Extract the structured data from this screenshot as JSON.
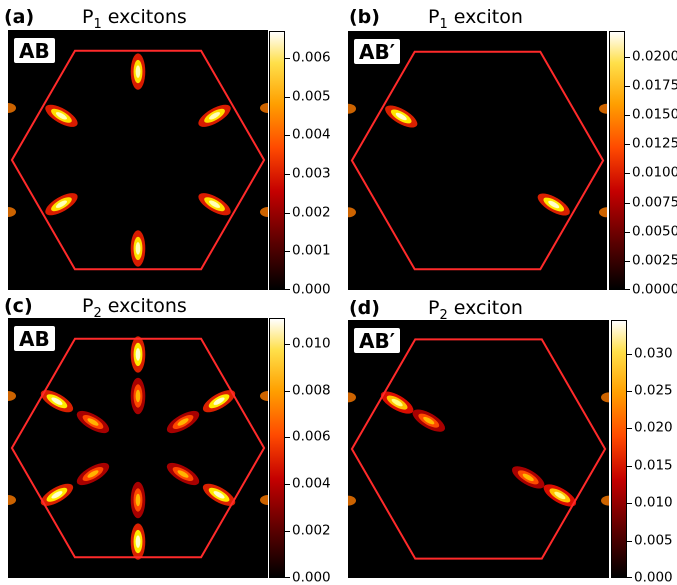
{
  "panels": [
    {
      "label": "(a)",
      "title_base": "P",
      "title_sub": "1",
      "title_rest": " excitons",
      "stacking": "AB",
      "colorbar_ticks": [
        "0.000",
        "0.001",
        "0.002",
        "0.003",
        "0.004",
        "0.005",
        "0.006"
      ],
      "colorbar_max": 0.0067
    },
    {
      "label": "(b)",
      "title_base": "P",
      "title_sub": "1",
      "title_rest": " exciton",
      "stacking": "AB′",
      "colorbar_ticks": [
        "0.0000",
        "0.0025",
        "0.0050",
        "0.0075",
        "0.0100",
        "0.0125",
        "0.0150",
        "0.0175",
        "0.0200"
      ],
      "colorbar_max": 0.0222
    },
    {
      "label": "(c)",
      "title_base": "P",
      "title_sub": "2",
      "title_rest": " excitons",
      "stacking": "AB",
      "colorbar_ticks": [
        "0.000",
        "0.002",
        "0.004",
        "0.006",
        "0.008",
        "0.010"
      ],
      "colorbar_max": 0.0111
    },
    {
      "label": "(d)",
      "title_base": "P",
      "title_sub": "2",
      "title_rest": " exciton",
      "stacking": "AB′",
      "colorbar_ticks": [
        "0.000",
        "0.005",
        "0.010",
        "0.015",
        "0.020",
        "0.025",
        "0.030"
      ],
      "colorbar_max": 0.0345
    }
  ],
  "chart_data": [
    {
      "type": "heatmap",
      "title": "P1 excitons",
      "panel": "(a)",
      "annotation": "AB",
      "colormap": "hot",
      "colorbar_range": [
        0.0,
        0.0067
      ],
      "hexagon_color": "#ff2a2a",
      "hotspots": [
        {
          "angle_deg": 90,
          "radius": 0.34,
          "value": 0.0062
        },
        {
          "angle_deg": 30,
          "radius": 0.34,
          "value": 0.0062
        },
        {
          "angle_deg": -30,
          "radius": 0.34,
          "value": 0.0062
        },
        {
          "angle_deg": -90,
          "radius": 0.34,
          "value": 0.0062
        },
        {
          "angle_deg": -150,
          "radius": 0.34,
          "value": 0.0062
        },
        {
          "angle_deg": 150,
          "radius": 0.34,
          "value": 0.0062
        }
      ]
    },
    {
      "type": "heatmap",
      "title": "P1 exciton",
      "panel": "(b)",
      "annotation": "AB′",
      "colormap": "hot",
      "colorbar_range": [
        0.0,
        0.0222
      ],
      "hexagon_color": "#ff2a2a",
      "hotspots": [
        {
          "angle_deg": 150,
          "radius": 0.34,
          "value": 0.021
        },
        {
          "angle_deg": -30,
          "radius": 0.34,
          "value": 0.021
        }
      ]
    },
    {
      "type": "heatmap",
      "title": "P2 excitons",
      "panel": "(c)",
      "annotation": "AB",
      "colormap": "hot",
      "colorbar_range": [
        0.0,
        0.0111
      ],
      "hexagon_color": "#ff2a2a",
      "hotspots": [
        {
          "angle_deg": 90,
          "radius": 0.36,
          "value": 0.0105
        },
        {
          "angle_deg": 30,
          "radius": 0.36,
          "value": 0.0105
        },
        {
          "angle_deg": -30,
          "radius": 0.36,
          "value": 0.0105
        },
        {
          "angle_deg": -90,
          "radius": 0.36,
          "value": 0.0105
        },
        {
          "angle_deg": -150,
          "radius": 0.36,
          "value": 0.0105
        },
        {
          "angle_deg": 150,
          "radius": 0.36,
          "value": 0.0105
        },
        {
          "angle_deg": 90,
          "radius": 0.2,
          "value": 0.007
        },
        {
          "angle_deg": 30,
          "radius": 0.2,
          "value": 0.007
        },
        {
          "angle_deg": -30,
          "radius": 0.2,
          "value": 0.007
        },
        {
          "angle_deg": -90,
          "radius": 0.2,
          "value": 0.007
        },
        {
          "angle_deg": -150,
          "radius": 0.2,
          "value": 0.007
        },
        {
          "angle_deg": 150,
          "radius": 0.2,
          "value": 0.007
        }
      ]
    },
    {
      "type": "heatmap",
      "title": "P2 exciton",
      "panel": "(d)",
      "annotation": "AB′",
      "colormap": "hot",
      "colorbar_range": [
        0.0,
        0.0345
      ],
      "hexagon_color": "#ff2a2a",
      "hotspots": [
        {
          "angle_deg": 150,
          "radius": 0.36,
          "value": 0.03
        },
        {
          "angle_deg": 150,
          "radius": 0.22,
          "value": 0.022
        },
        {
          "angle_deg": -30,
          "radius": 0.22,
          "value": 0.022
        },
        {
          "angle_deg": -30,
          "radius": 0.36,
          "value": 0.03
        }
      ]
    }
  ]
}
